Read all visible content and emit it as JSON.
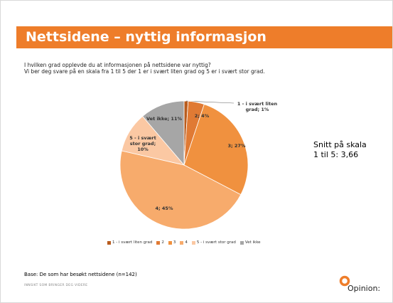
{
  "chart_data": {
    "type": "pie",
    "title": "Nettsidene – nyttig informasjon",
    "subtitle": [
      "I hvilken grad opplevde du at informasjonen på nettsidene var nyttig?",
      "Vi ber deg svare på en skala fra 1 til 5 der 1 er i svært liten grad og 5 er i svært stor grad."
    ],
    "categories": [
      "1 - i svært liten grad",
      "2",
      "3",
      "4",
      "5 - i svært stor grad",
      "Vet ikke"
    ],
    "values": [
      1,
      4,
      27,
      45,
      10,
      11
    ],
    "value_labels": [
      "1 - i svært liten grad; 1%",
      "2; 4%",
      "3; 27%",
      "4; 45%",
      "5 - i svært stor grad; 10%",
      "Vet ikke; 11%"
    ],
    "colors": [
      "#b85c1e",
      "#e07a34",
      "#f0913f",
      "#f7ab6c",
      "#fbc8a3",
      "#a6a6a6"
    ],
    "legend": "bottom",
    "annotations": [
      "Snitt på skala",
      "1 til 5: 3,66"
    ],
    "footnote": "Base: De som har besøkt nettsidene (n=142)"
  },
  "footer": {
    "slogan": "INNSIKT SOM BRINGER DEG VIDERE",
    "logo": "Opinion:"
  }
}
